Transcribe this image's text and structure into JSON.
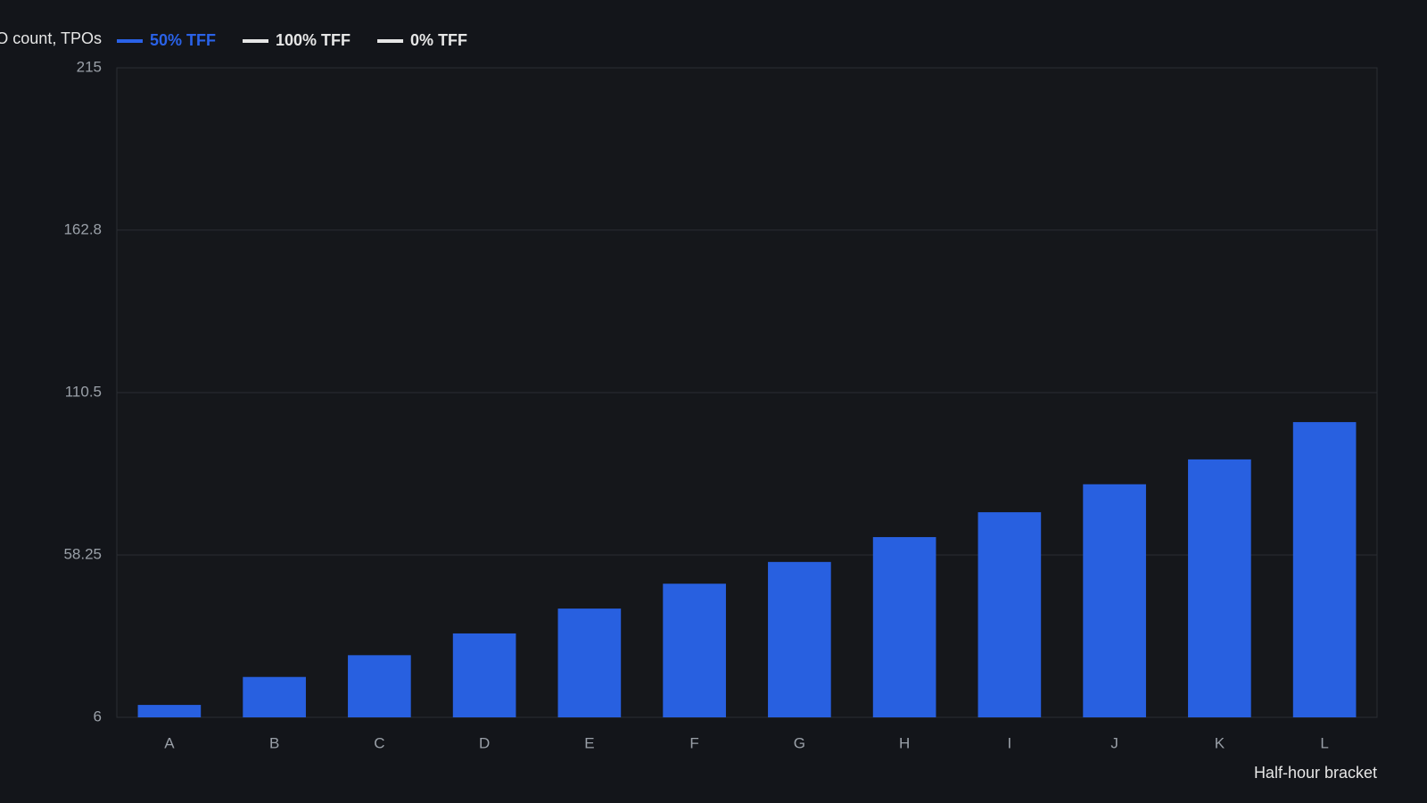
{
  "chart_data": {
    "type": "bar",
    "y_label": "TPO count, TPOs",
    "x_label": "Half-hour bracket",
    "legend": [
      {
        "name": "50% TFF",
        "color": "#2a62e8"
      },
      {
        "name": "100% TFF",
        "color": "#e6e6e6"
      },
      {
        "name": "0% TFF",
        "color": "#e6e6e6"
      }
    ],
    "categories": [
      "A",
      "B",
      "C",
      "D",
      "E",
      "F",
      "G",
      "H",
      "I",
      "J",
      "K",
      "L"
    ],
    "values": [
      10,
      19,
      26,
      33,
      41,
      49,
      56,
      64,
      72,
      81,
      89,
      101
    ],
    "color": "#2860e0",
    "ylim": [
      6,
      215
    ],
    "yticks": [
      6,
      58.25,
      110.5,
      162.8,
      215
    ],
    "grid": true
  }
}
